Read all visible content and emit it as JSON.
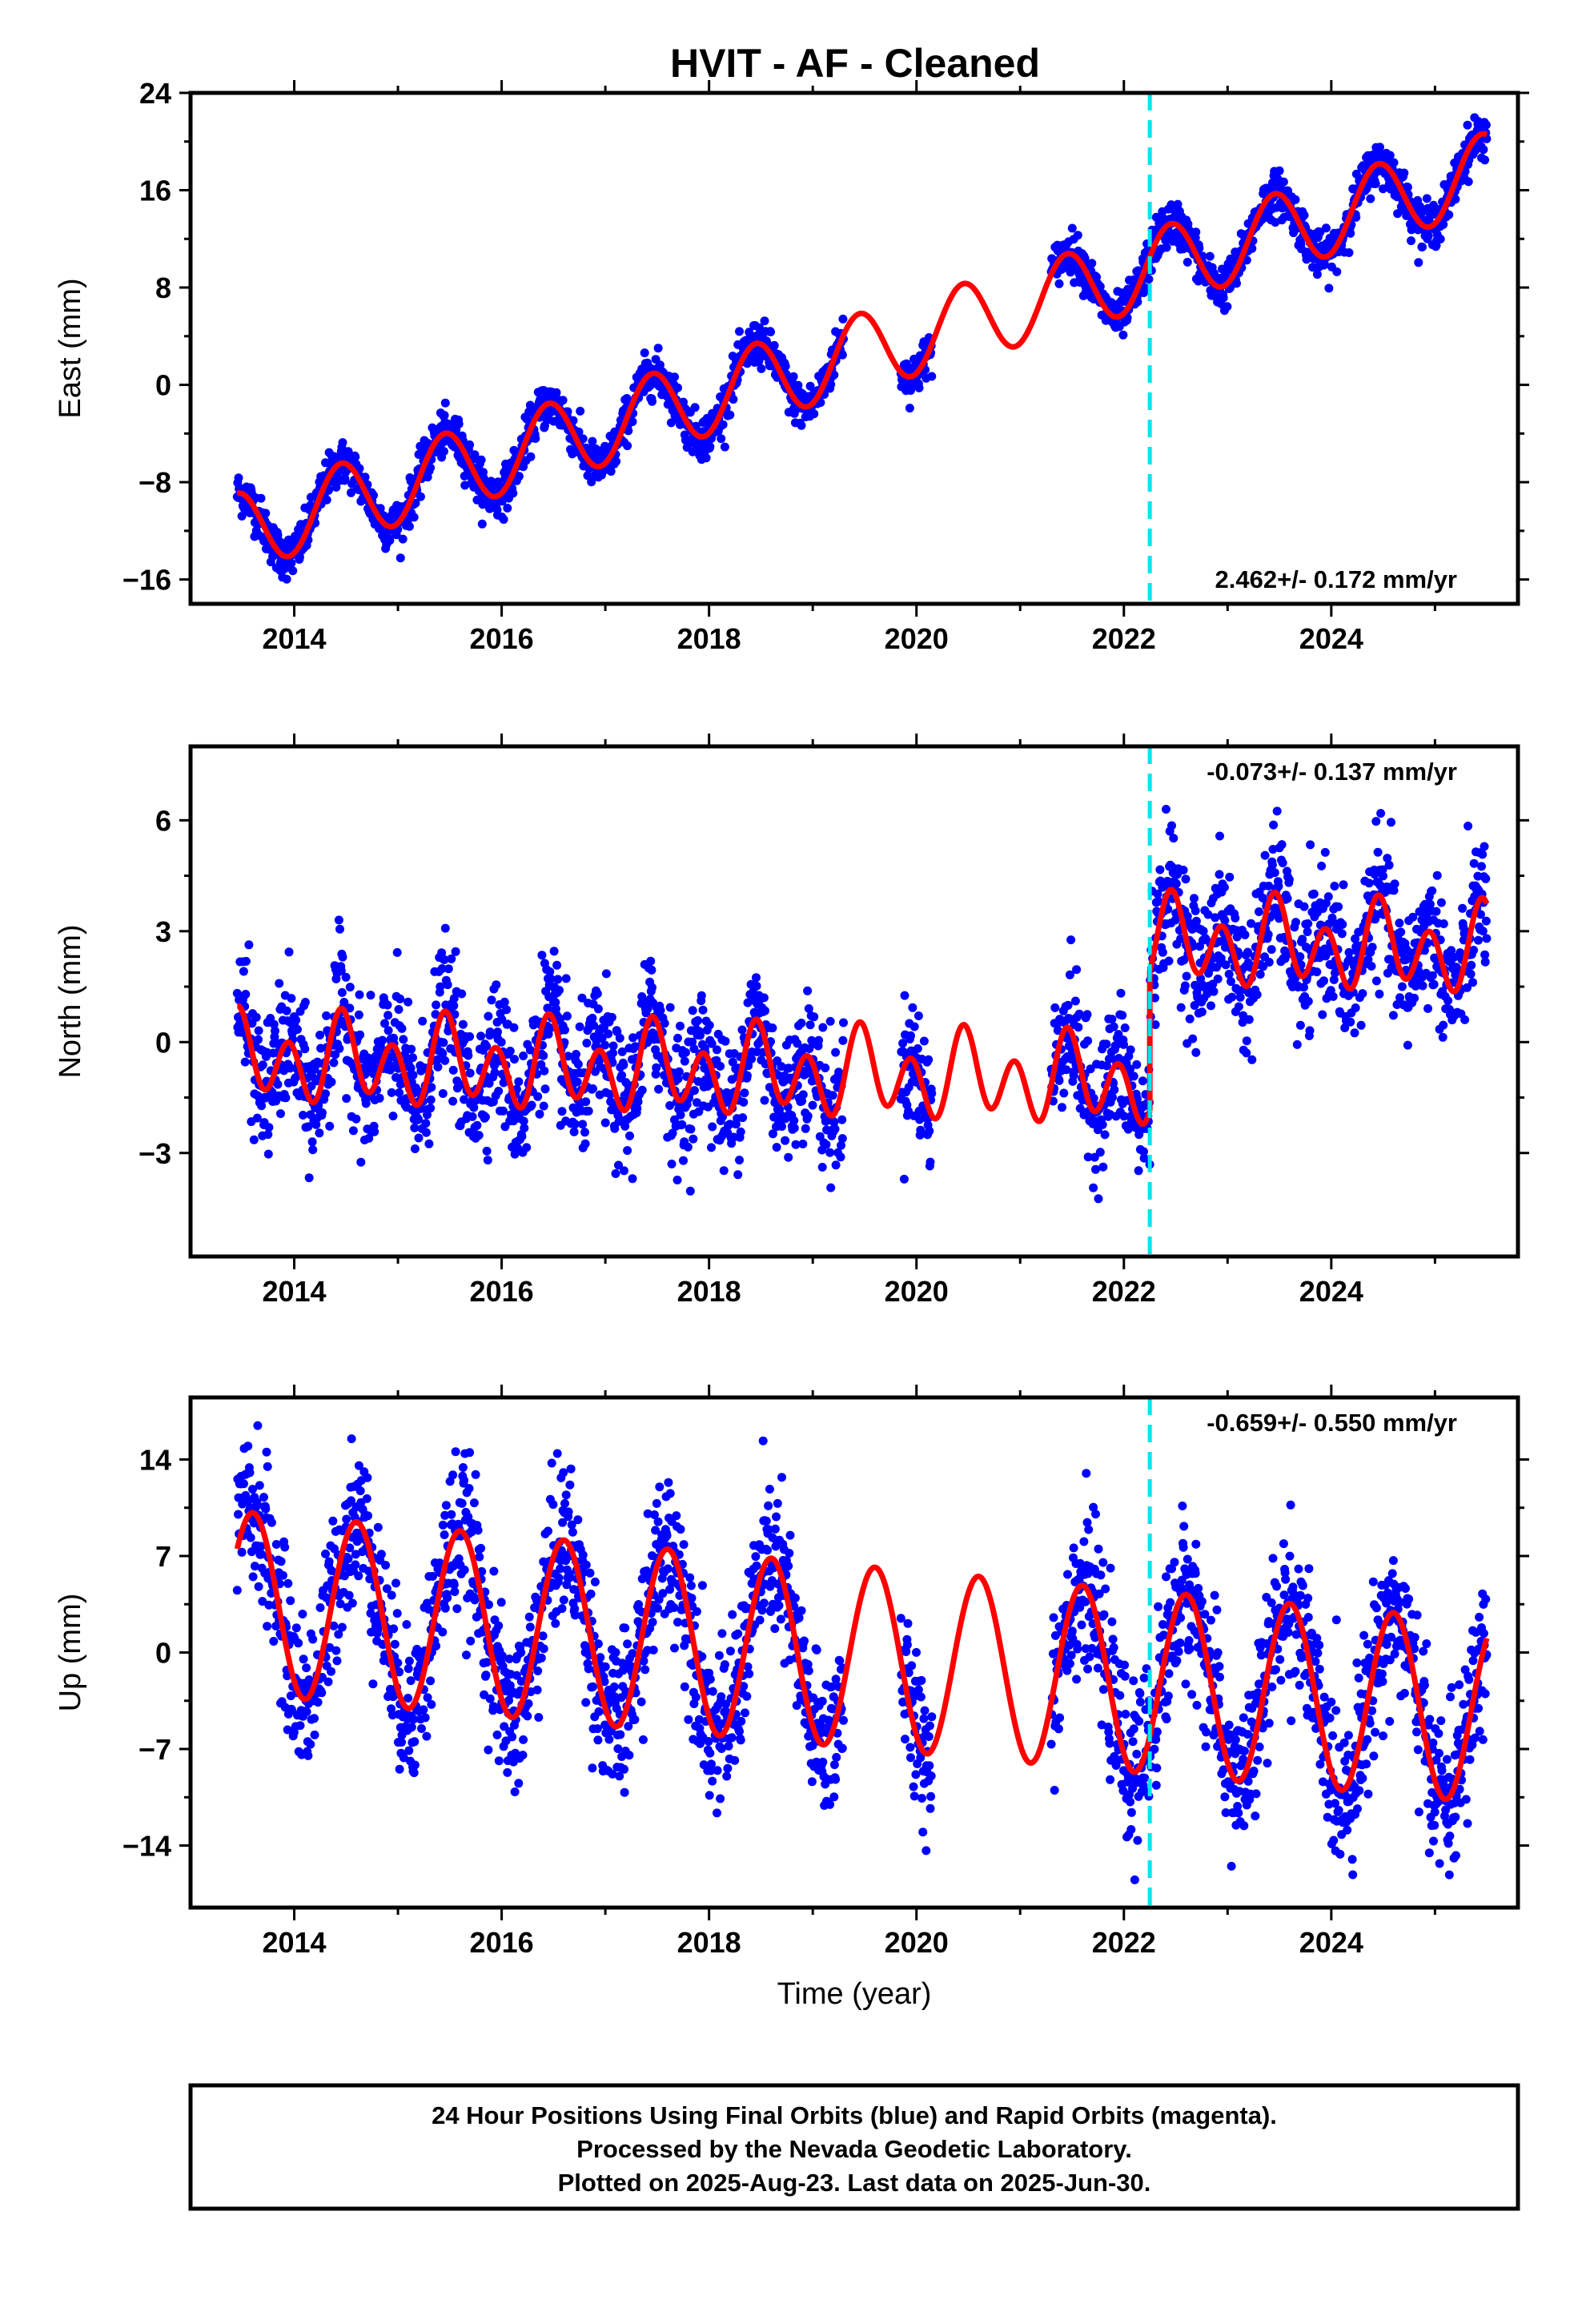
{
  "title": "HVIT  - AF - Cleaned",
  "colors": {
    "data": "#0000ff",
    "model": "#ff0000",
    "break": "#00e5ee",
    "frame": "#000000"
  },
  "footer": {
    "line1": "24 Hour Positions Using Final Orbits (blue) and Rapid Orbits (magenta).",
    "line2": "Processed by the Nevada Geodetic Laboratory.",
    "line3": "Plotted on 2025-Aug-23. Last data on 2025-Jun-30."
  },
  "chart_data": [
    {
      "type": "scatter",
      "ylabel": "East (mm)",
      "xlabel": "",
      "xlim": [
        2013.0,
        2025.8
      ],
      "ylim": [
        -18,
        24
      ],
      "xticks": [
        "2014",
        "2016",
        "2018",
        "2020",
        "2022",
        "2024"
      ],
      "yticks": [
        "24",
        "16",
        "8",
        "0",
        "−8",
        "−16"
      ],
      "rate_label": "2.462+/- 0.172 mm/yr",
      "rate_mm_yr": 2.462,
      "rate_sigma_mm_yr": 0.172,
      "break_epoch": 2022.25,
      "data_spans": [
        [
          2013.45,
          2019.3
        ],
        [
          2019.85,
          2020.15
        ],
        [
          2021.3,
          2025.5
        ]
      ],
      "model": {
        "intercept_at_2013_5": -12.0,
        "offset_at_break": 0.0,
        "annual_amp": 3.2,
        "annual_peak": 2013.45
      },
      "scatter_sigma": 0.9,
      "series": [
        {
          "name": "",
          "x": [
            2013.5,
            2014.5,
            2015.5,
            2016.5,
            2017.5,
            2018.5,
            2019.5,
            2020.5,
            2021.5,
            2022.5,
            2023.5,
            2024.5,
            2025.4
          ],
          "y": [
            -10.8,
            -8.0,
            -5.6,
            -3.0,
            -0.5,
            2.0,
            4.4,
            6.9,
            9.3,
            14.0,
            16.5,
            19.0,
            21.2
          ]
        }
      ]
    },
    {
      "type": "scatter",
      "ylabel": "North (mm)",
      "xlabel": "",
      "xlim": [
        2013.0,
        2025.8
      ],
      "ylim": [
        -5.8,
        8.0
      ],
      "xticks": [
        "2014",
        "2016",
        "2018",
        "2020",
        "2022",
        "2024"
      ],
      "yticks": [
        "6",
        "3",
        "0",
        "−3"
      ],
      "rate_label": "-0.073+/- 0.137 mm/yr",
      "rate_mm_yr": -0.073,
      "rate_sigma_mm_yr": 0.137,
      "break_epoch": 2022.25,
      "data_spans": [
        [
          2013.45,
          2019.3
        ],
        [
          2019.85,
          2020.15
        ],
        [
          2021.3,
          2025.5
        ]
      ],
      "model": {
        "intercept_at_2013_5": -0.45,
        "offset_at_break": 3.8,
        "annual_amp": 0.5,
        "annual_peak": 2013.5,
        "semiannual_amp": 0.95,
        "semiannual_peak": 2013.45
      },
      "scatter_sigma": 0.9,
      "series": [
        {
          "name": "",
          "x": [
            2013.5,
            2015.5,
            2017.5,
            2019.5,
            2021.5,
            2022.5,
            2023.5,
            2024.5,
            2025.4
          ],
          "y": [
            0.7,
            0.6,
            0.5,
            0.3,
            0.1,
            4.0,
            3.9,
            3.9,
            3.8
          ]
        }
      ]
    },
    {
      "type": "scatter",
      "ylabel": "Up (mm)",
      "xlabel": "Time (year)",
      "xlim": [
        2013.0,
        2025.8
      ],
      "ylim": [
        -18.5,
        18.5
      ],
      "xticks": [
        "2014",
        "2016",
        "2018",
        "2020",
        "2022",
        "2024"
      ],
      "yticks": [
        "14",
        "7",
        "0",
        "−7",
        "−14"
      ],
      "rate_label": "-0.659+/- 0.550 mm/yr",
      "rate_mm_yr": -0.659,
      "rate_sigma_mm_yr": 0.55,
      "break_epoch": 2022.25,
      "data_spans": [
        [
          2013.45,
          2019.3
        ],
        [
          2019.85,
          2020.15
        ],
        [
          2021.3,
          2025.5
        ]
      ],
      "model": {
        "intercept_at_2013_5": 3.6,
        "offset_at_break": 0.0,
        "annual_amp": 6.6,
        "annual_peak": 2013.6
      },
      "scatter_sigma": 2.8,
      "series": [
        {
          "name": "",
          "x": [
            2013.6,
            2014.6,
            2015.6,
            2016.6,
            2017.6,
            2018.6,
            2019.6,
            2020.6,
            2021.6,
            2022.6,
            2023.6,
            2024.6,
            2025.4
          ],
          "y": [
            10.2,
            9.5,
            8.9,
            8.2,
            7.6,
            6.9,
            6.2,
            5.6,
            4.9,
            7.8,
            7.2,
            6.5,
            4.2
          ]
        }
      ]
    }
  ]
}
